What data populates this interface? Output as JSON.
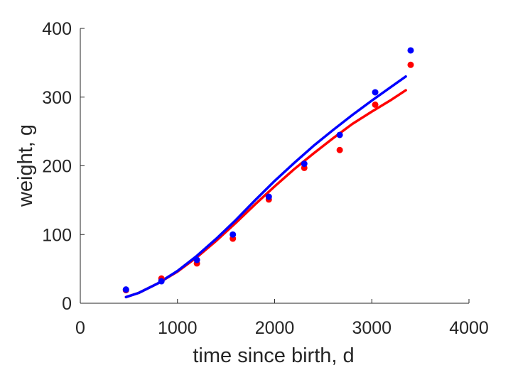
{
  "chart_data": {
    "type": "scatter",
    "title": "",
    "xlabel": "time since birth, d",
    "ylabel": "weight, g",
    "xlim": [
      0,
      4000
    ],
    "ylim": [
      0,
      400
    ],
    "xticks": [
      0,
      1000,
      2000,
      3000,
      4000
    ],
    "yticks": [
      0,
      100,
      200,
      300,
      400
    ],
    "xtick_labels": [
      "0",
      "1000",
      "2000",
      "3000",
      "4000"
    ],
    "ytick_labels": [
      "0",
      "100",
      "200",
      "300",
      "400"
    ],
    "grid": false,
    "legend": "none",
    "series": [
      {
        "color": "#ff0000",
        "points": {
          "x": [
            470,
            835,
            1200,
            1570,
            1940,
            2305,
            2670,
            3035,
            3400
          ],
          "y": [
            19,
            36,
            58,
            94,
            151,
            197,
            223,
            289,
            347
          ]
        },
        "fit": {
          "x": [
            470,
            600,
            800,
            1000,
            1200,
            1400,
            1600,
            1800,
            2000,
            2200,
            2400,
            2600,
            2800,
            3000,
            3200,
            3350
          ],
          "y": [
            9,
            15,
            29,
            46,
            67,
            91,
            117,
            144,
            170,
            195,
            218,
            240,
            261,
            279,
            296,
            310
          ]
        }
      },
      {
        "color": "#0000ff",
        "points": {
          "x": [
            470,
            835,
            1200,
            1570,
            1940,
            2305,
            2670,
            3035,
            3400
          ],
          "y": [
            20,
            32,
            63,
            100,
            155,
            203,
            245,
            307,
            368
          ]
        },
        "fit": {
          "x": [
            470,
            600,
            800,
            1000,
            1200,
            1400,
            1600,
            1800,
            2000,
            2200,
            2400,
            2600,
            2800,
            3000,
            3200,
            3350
          ],
          "y": [
            9,
            15,
            29,
            47,
            69,
            94,
            121,
            150,
            178,
            204,
            229,
            252,
            274,
            295,
            315,
            330
          ]
        }
      }
    ]
  }
}
